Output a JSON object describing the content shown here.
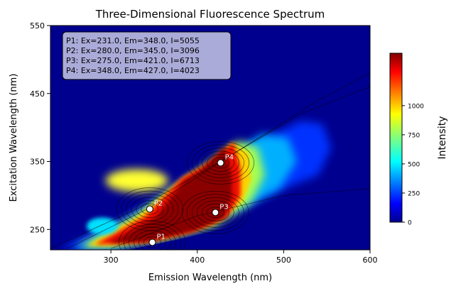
{
  "chart_data": {
    "type": "heatmap",
    "title": "Three-Dimensional Fluorescence Spectrum",
    "xlabel": "Emission Wavelength (nm)",
    "ylabel": "Excitation Wavelength (nm)",
    "xlim": [
      230,
      600
    ],
    "ylim": [
      220,
      550
    ],
    "xticks": [
      300,
      400,
      500,
      600
    ],
    "yticks": [
      250,
      350,
      450,
      550
    ],
    "colorbar": {
      "label": "Intensity",
      "range": [
        0,
        1450
      ],
      "ticks": [
        0,
        250,
        500,
        750,
        1000
      ]
    },
    "grid": false,
    "peaks": [
      {
        "name": "P1",
        "ex": 231.0,
        "em": 348.0,
        "intensity": 5055
      },
      {
        "name": "P2",
        "ex": 280.0,
        "em": 345.0,
        "intensity": 3096
      },
      {
        "name": "P3",
        "ex": 275.0,
        "em": 421.0,
        "intensity": 6713
      },
      {
        "name": "P4",
        "ex": 348.0,
        "em": 427.0,
        "intensity": 4023
      }
    ],
    "annotation_lines": [
      "P1: Ex=231.0, Em=348.0, I=5055",
      "P2: Ex=280.0, Em=345.0, I=3096",
      "P3: Ex=275.0, Em=421.0, I=6713",
      "P4: Ex=348.0, Em=427.0, I=4023"
    ]
  }
}
